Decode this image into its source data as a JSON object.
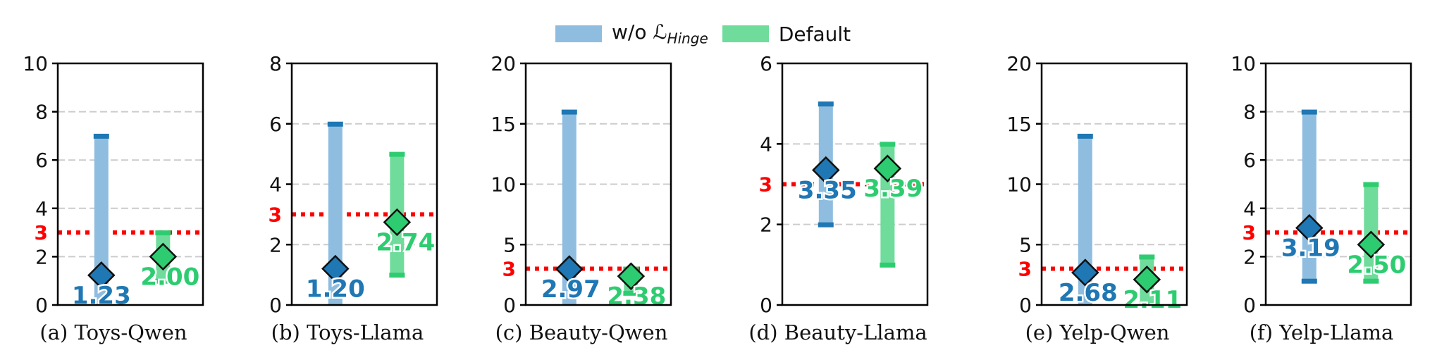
{
  "legend": {
    "series0_label": "w/o ℒ",
    "series0_sub": "Hinge",
    "series1_label": "Default"
  },
  "colors": {
    "series0": "#1f77b4",
    "series0_bar": "#8fbde0",
    "series1": "#2ecc71",
    "series1_bar": "#6fdc9b",
    "threshold": "#ff0000",
    "grid": "#cccccc"
  },
  "chart_data": [
    {
      "type": "range-bar",
      "caption": "(a) Toys-Qwen",
      "ylim": [
        0,
        10
      ],
      "yticks": [
        0,
        2,
        4,
        6,
        8,
        10
      ],
      "threshold": 3,
      "series": [
        {
          "name": "w/o ℒHinge",
          "min": 0,
          "max": 7,
          "mean": 1.23,
          "label": "1.23"
        },
        {
          "name": "Default",
          "min": 1,
          "max": 3,
          "mean": 2.0,
          "label": "2.00"
        }
      ]
    },
    {
      "type": "range-bar",
      "caption": "(b) Toys-Llama",
      "ylim": [
        0,
        8
      ],
      "yticks": [
        0,
        2,
        4,
        6,
        8
      ],
      "threshold": 3,
      "series": [
        {
          "name": "w/o ℒHinge",
          "min": 0,
          "max": 6,
          "mean": 1.2,
          "label": "1.20"
        },
        {
          "name": "Default",
          "min": 1,
          "max": 5,
          "mean": 2.74,
          "label": "2.74"
        }
      ]
    },
    {
      "type": "range-bar",
      "caption": "(c) Beauty-Qwen",
      "ylim": [
        0,
        20
      ],
      "yticks": [
        0,
        5,
        10,
        15,
        20
      ],
      "threshold": 3,
      "series": [
        {
          "name": "w/o ℒHinge",
          "min": 0,
          "max": 16,
          "mean": 2.97,
          "label": "2.97"
        },
        {
          "name": "Default",
          "min": 1,
          "max": 3,
          "mean": 2.38,
          "label": "2.38"
        }
      ]
    },
    {
      "type": "range-bar",
      "caption": "(d) Beauty-Llama",
      "ylim": [
        0,
        6
      ],
      "yticks": [
        0,
        2,
        4,
        6
      ],
      "threshold": 3,
      "series": [
        {
          "name": "w/o ℒHinge",
          "min": 2,
          "max": 5,
          "mean": 3.35,
          "label": "3.35"
        },
        {
          "name": "Default",
          "min": 1,
          "max": 4,
          "mean": 3.39,
          "label": "3.39"
        }
      ]
    },
    {
      "type": "range-bar",
      "caption": "(e) Yelp-Qwen",
      "ylim": [
        0,
        20
      ],
      "yticks": [
        0,
        5,
        10,
        15,
        20
      ],
      "threshold": 3,
      "series": [
        {
          "name": "w/o ℒHinge",
          "min": 0,
          "max": 14,
          "mean": 2.68,
          "label": "2.68"
        },
        {
          "name": "Default",
          "min": 0,
          "max": 4,
          "mean": 2.11,
          "label": "2.11"
        }
      ]
    },
    {
      "type": "range-bar",
      "caption": "(f) Yelp-Llama",
      "ylim": [
        0,
        10
      ],
      "yticks": [
        0,
        2,
        4,
        6,
        8,
        10
      ],
      "threshold": 3,
      "series": [
        {
          "name": "w/o ℒHinge",
          "min": 1,
          "max": 8,
          "mean": 3.19,
          "label": "3.19"
        },
        {
          "name": "Default",
          "min": 1,
          "max": 5,
          "mean": 2.5,
          "label": "2.50"
        }
      ]
    }
  ]
}
